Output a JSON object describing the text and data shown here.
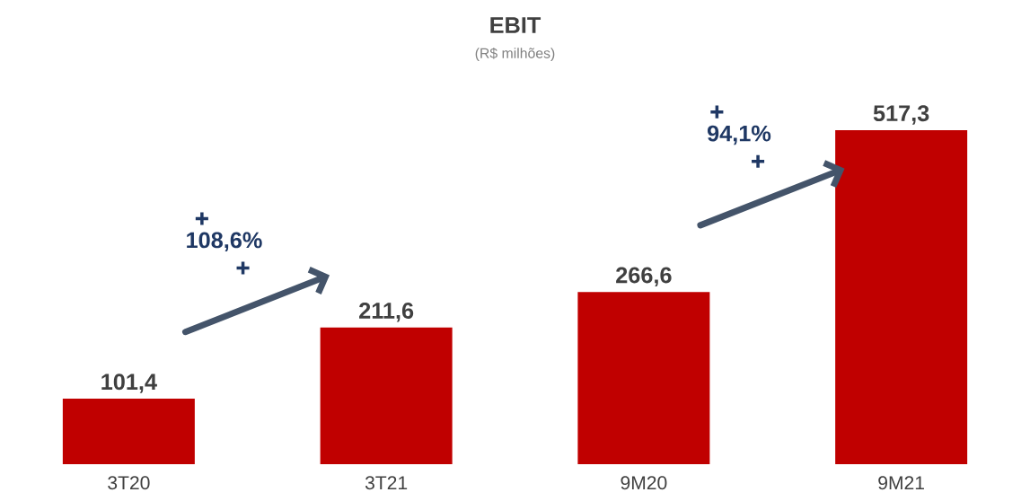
{
  "chart_data": {
    "type": "bar",
    "title": "EBIT",
    "subtitle": "(R$ milhões)",
    "categories": [
      "3T20",
      "3T21",
      "9M20",
      "9M21"
    ],
    "values": [
      101.4,
      211.6,
      266.6,
      517.3
    ],
    "value_labels": [
      "101,4",
      "211,6",
      "266,6",
      "517,3"
    ],
    "color": "#c00000",
    "annotations": [
      "108,6%",
      "94,1%"
    ]
  }
}
